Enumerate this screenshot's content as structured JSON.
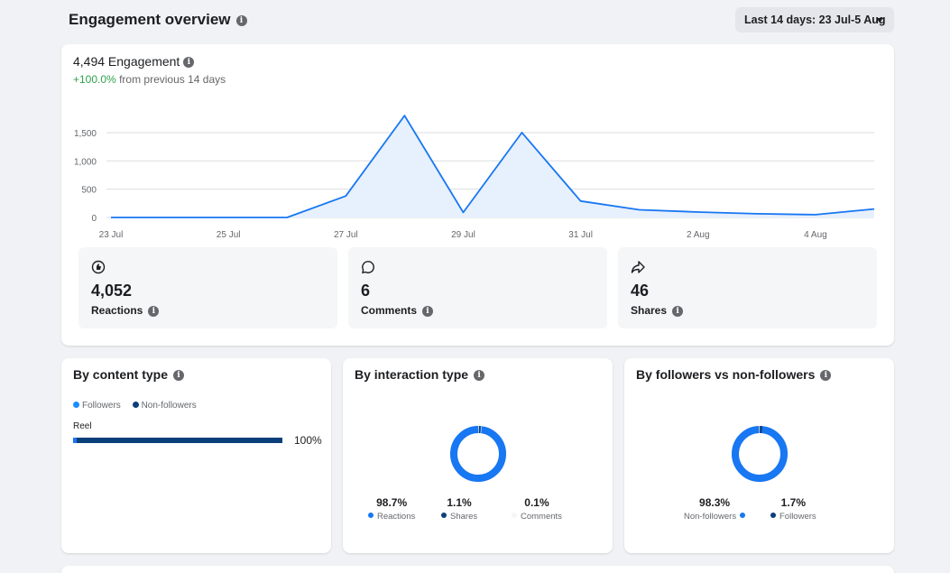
{
  "header": {
    "title": "Engagement overview",
    "date_range": "Last 14 days: 23 Jul-5 Aug"
  },
  "engagement": {
    "total_label": "4,494 Engagement",
    "change_value": "+100.0%",
    "change_text": "from previous 14 days"
  },
  "chart_data": {
    "type": "area",
    "x": [
      "23 Jul",
      "24 Jul",
      "25 Jul",
      "26 Jul",
      "27 Jul",
      "28 Jul",
      "29 Jul",
      "30 Jul",
      "31 Jul",
      "1 Aug",
      "2 Aug",
      "3 Aug",
      "4 Aug",
      "5 Aug"
    ],
    "series": [
      {
        "values": [
          0,
          0,
          0,
          0,
          380,
          1800,
          90,
          1500,
          290,
          135,
          95,
          65,
          50,
          150
        ]
      }
    ],
    "x_tick_labels": [
      "23 Jul",
      "25 Jul",
      "27 Jul",
      "29 Jul",
      "31 Jul",
      "2 Aug",
      "4 Aug"
    ],
    "y_ticks": [
      0,
      500,
      1000,
      1500
    ],
    "y_tick_labels": [
      "0",
      "500",
      "1,000",
      "1,500"
    ],
    "ylim": [
      0,
      1850
    ],
    "grid": true,
    "colors": {
      "line": "#1877f2",
      "fill": "#e7f0fd"
    }
  },
  "metrics": [
    {
      "icon": "reaction-icon",
      "value": "4,052",
      "label": "Reactions"
    },
    {
      "icon": "comment-icon",
      "value": "6",
      "label": "Comments"
    },
    {
      "icon": "share-icon",
      "value": "46",
      "label": "Shares"
    }
  ],
  "content_type": {
    "title": "By content type",
    "legend": [
      {
        "label": "Followers",
        "color": "#1a8cff"
      },
      {
        "label": "Non-followers",
        "color": "#0a3f7a"
      }
    ],
    "bars": [
      {
        "label": "Reel",
        "pct_text": "100%",
        "fraction": 1.0
      }
    ]
  },
  "interaction_type": {
    "title": "By interaction type",
    "stats": [
      {
        "value": "98.7%",
        "label": "Reactions",
        "color": "#1877f2",
        "fraction": 0.987
      },
      {
        "value": "1.1%",
        "label": "Shares",
        "color": "#0a3f7a",
        "fraction": 0.011
      },
      {
        "value": "0.1%",
        "label": "Comments",
        "color": "#e4e6eb",
        "fraction": 0.001
      }
    ]
  },
  "followers": {
    "title": "By followers vs non-followers",
    "stats": [
      {
        "value": "98.3%",
        "label": "Non-followers",
        "color": "#1877f2",
        "fraction": 0.983
      },
      {
        "value": "1.7%",
        "label": "Followers",
        "color": "#0a3f7a",
        "fraction": 0.017
      }
    ]
  }
}
